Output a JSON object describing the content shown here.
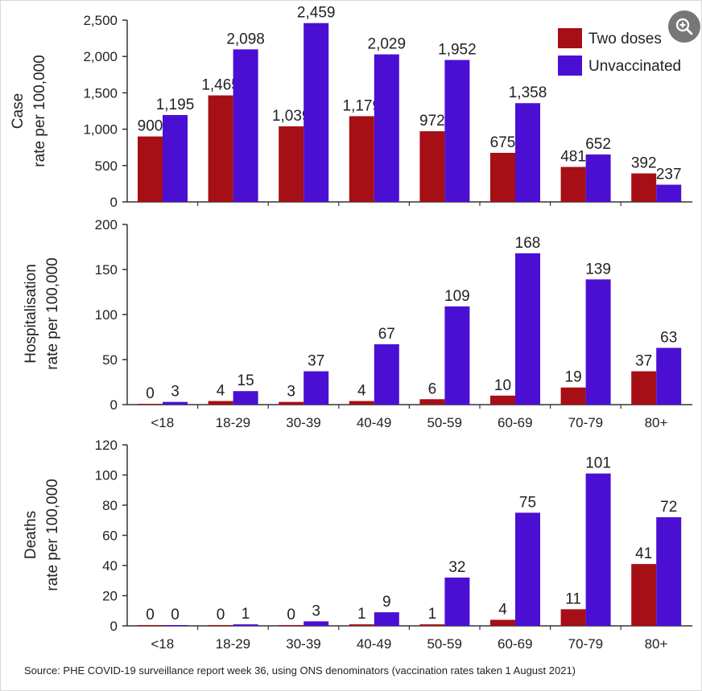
{
  "colors": {
    "two_doses": "#a50f15",
    "unvaccinated": "#4b0fd4",
    "axis": "#333333",
    "zoom_bg": "#777777"
  },
  "legend": {
    "two_doses": "Two doses",
    "unvaccinated": "Unvaccinated"
  },
  "source_text": "Source: PHE COVID-19  surveillance report week 36, using ONS denominators (vaccination rates taken 1 August 2021)",
  "zoom_icon": "zoom-in-icon",
  "chart_data": [
    {
      "type": "bar",
      "ylabel_lines": [
        "Case",
        "rate per 100,000"
      ],
      "categories": [
        "<18",
        "18-29",
        "30-39",
        "40-49",
        "50-59",
        "60-69",
        "70-79",
        "80+"
      ],
      "show_categories": false,
      "ylim": [
        0,
        2500
      ],
      "yticks": [
        0,
        500,
        1000,
        1500,
        2000,
        2500
      ],
      "ytick_labels": [
        "0",
        "500",
        "1,000",
        "1,500",
        "2,000",
        "2,500"
      ],
      "series": [
        {
          "name": "Two doses",
          "values": [
            900,
            1465,
            1039,
            1179,
            972,
            675,
            481,
            392
          ],
          "labels": [
            "900",
            "1,465",
            "1,039",
            "1,179",
            "972",
            "675",
            "481",
            "392"
          ]
        },
        {
          "name": "Unvaccinated",
          "values": [
            1195,
            2098,
            2459,
            2029,
            1952,
            1358,
            652,
            237
          ],
          "labels": [
            "1,195",
            "2,098",
            "2,459",
            "2,029",
            "1,952",
            "1,358",
            "652",
            "237"
          ]
        }
      ],
      "legend_position": "top-right"
    },
    {
      "type": "bar",
      "ylabel_lines": [
        "Hospitalisation",
        "rate per 100,000"
      ],
      "categories": [
        "<18",
        "18-29",
        "30-39",
        "40-49",
        "50-59",
        "60-69",
        "70-79",
        "80+"
      ],
      "show_categories": true,
      "ylim": [
        0,
        200
      ],
      "yticks": [
        0,
        50,
        100,
        150,
        200
      ],
      "ytick_labels": [
        "0",
        "50",
        "100",
        "150",
        "200"
      ],
      "series": [
        {
          "name": "Two doses",
          "values": [
            0,
            4,
            3,
            4,
            6,
            10,
            19,
            37
          ],
          "labels": [
            "0",
            "4",
            "3",
            "4",
            "6",
            "10",
            "19",
            "37"
          ]
        },
        {
          "name": "Unvaccinated",
          "values": [
            3,
            15,
            37,
            67,
            109,
            168,
            139,
            63
          ],
          "labels": [
            "3",
            "15",
            "37",
            "67",
            "109",
            "168",
            "139",
            "63"
          ]
        }
      ]
    },
    {
      "type": "bar",
      "ylabel_lines": [
        "Deaths",
        "rate per 100,000"
      ],
      "categories": [
        "<18",
        "18-29",
        "30-39",
        "40-49",
        "50-59",
        "60-69",
        "70-79",
        "80+"
      ],
      "show_categories": true,
      "ylim": [
        0,
        120
      ],
      "yticks": [
        0,
        20,
        40,
        60,
        80,
        100,
        120
      ],
      "ytick_labels": [
        "0",
        "20",
        "40",
        "60",
        "80",
        "100",
        "120"
      ],
      "series": [
        {
          "name": "Two doses",
          "values": [
            0,
            0,
            0,
            1,
            1,
            4,
            11,
            41
          ],
          "labels": [
            "0",
            "0",
            "0",
            "1",
            "1",
            "4",
            "11",
            "41"
          ]
        },
        {
          "name": "Unvaccinated",
          "values": [
            0,
            1,
            3,
            9,
            32,
            75,
            101,
            72
          ],
          "labels": [
            "0",
            "1",
            "3",
            "9",
            "32",
            "75",
            "101",
            "72"
          ]
        }
      ]
    }
  ]
}
